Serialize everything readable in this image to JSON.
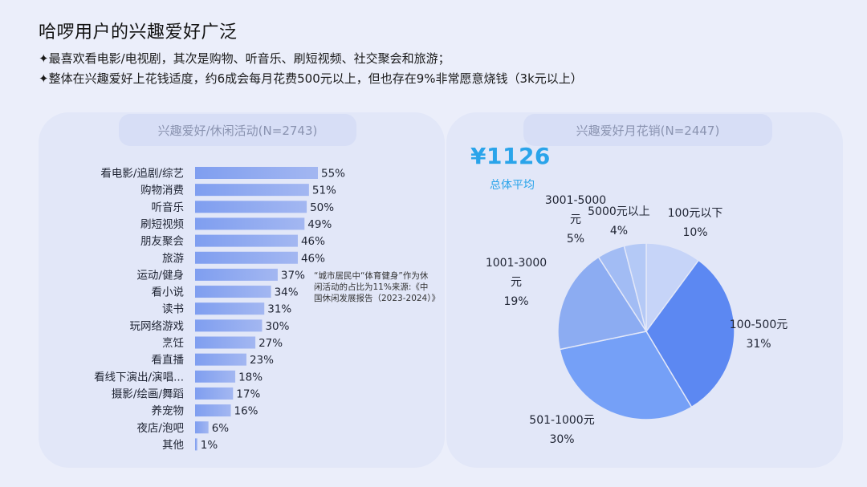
{
  "page": {
    "title": "哈啰用户的兴趣爱好广泛",
    "bullet1": "✦最喜欢看电影/电视剧，其次是购物、听音乐、刷短视频、社交聚会和旅游；",
    "bullet2": "✦整体在兴趣爱好上花钱适度，约6成会每月花费500元以上，但也存在9%非常愿意烧钱（3k元以上）"
  },
  "left_panel": {
    "title": "兴趣爱好/休闲活动(N=2743)",
    "note": "“城市居民中“体育健身”作为休闲活动的占比为11%来源:《中国休闲发展报告（2023-2024）》"
  },
  "right_panel": {
    "title": "兴趣爱好月花销(N=2447)",
    "average_value": "¥1126",
    "average_label": "总体平均"
  },
  "chart_data": [
    {
      "type": "bar",
      "orientation": "horizontal",
      "title": "兴趣爱好/休闲活动(N=2743)",
      "categories": [
        "看电影/追剧/综艺",
        "购物消费",
        "听音乐",
        "刷短视频",
        "朋友聚会",
        "旅游",
        "运动/健身",
        "看小说",
        "读书",
        "玩网络游戏",
        "烹饪",
        "看直播",
        "看线下演出/演唱...",
        "摄影/绘画/舞蹈",
        "养宠物",
        "夜店/泡吧",
        "其他"
      ],
      "values": [
        55,
        51,
        50,
        49,
        46,
        46,
        37,
        34,
        31,
        30,
        27,
        23,
        18,
        17,
        16,
        6,
        1
      ],
      "value_labels": [
        "55%",
        "51%",
        "50%",
        "49%",
        "46%",
        "46%",
        "37%",
        "34%",
        "31%",
        "30%",
        "27%",
        "23%",
        "18%",
        "17%",
        "16%",
        "6%",
        "1%"
      ],
      "bar_color": "#a3b7f1",
      "grid": false
    },
    {
      "type": "pie",
      "title": "兴趣爱好月花销(N=2447)",
      "slices": [
        {
          "label": [
            "100元以下"
          ],
          "pct_label": "10%",
          "value": 10,
          "color": "#c6d4f8"
        },
        {
          "label": [
            "100-500元"
          ],
          "pct_label": "31%",
          "value": 31,
          "color": "#5c88f2"
        },
        {
          "label": [
            "501-1000元"
          ],
          "pct_label": "30%",
          "value": 30,
          "color": "#75a0f7"
        },
        {
          "label": [
            "1001-3000",
            "元"
          ],
          "pct_label": "19%",
          "value": 19,
          "color": "#8cacf2"
        },
        {
          "label": [
            "3001-5000",
            "元"
          ],
          "pct_label": "5%",
          "value": 5,
          "color": "#a2bcf4"
        },
        {
          "label": [
            "5000元以上"
          ],
          "pct_label": "4%",
          "value": 4,
          "color": "#b4c9f6"
        }
      ]
    }
  ]
}
